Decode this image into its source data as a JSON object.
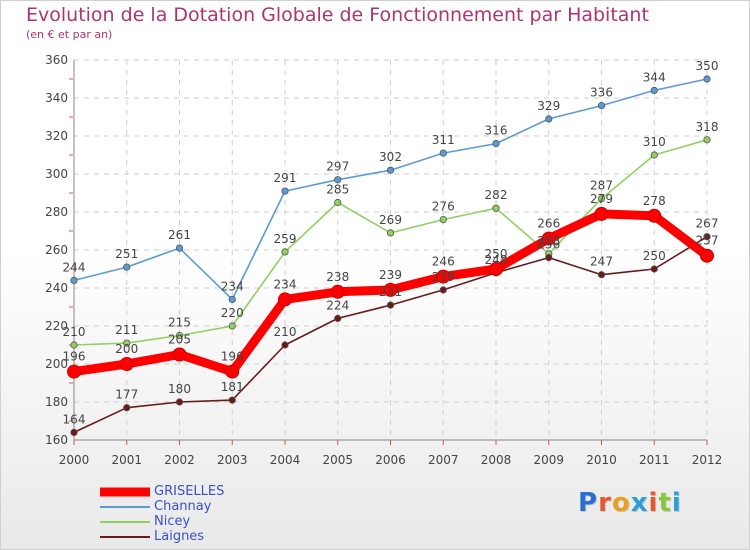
{
  "header": {
    "title": "Evolution de la Dotation Globale de Fonctionnement par Habitant",
    "subtitle": "(en € et par an)"
  },
  "logo": {
    "text": "Proxiti",
    "letter_colors": [
      "#2a6fd0",
      "#e8572a",
      "#e8a020",
      "#2a9fd8",
      "#e8572a",
      "#8cc63f",
      "#2a9fd8"
    ]
  },
  "chart_data": {
    "type": "line",
    "title": "Evolution de la Dotation Globale de Fonctionnement par Habitant",
    "subtitle": "(en € et par an)",
    "xlabel": "",
    "ylabel": "",
    "x": [
      "2000",
      "2001",
      "2002",
      "2003",
      "2004",
      "2005",
      "2006",
      "2007",
      "2008",
      "2009",
      "2010",
      "2011",
      "2012"
    ],
    "ylim": [
      160,
      360
    ],
    "yticks": [
      160,
      180,
      200,
      220,
      240,
      260,
      280,
      300,
      320,
      340,
      360
    ],
    "grid": true,
    "legend_position": "bottom-left",
    "series": [
      {
        "name": "GRISELLES",
        "color": "#ff0000",
        "values": [
          196,
          200,
          205,
          196,
          234,
          238,
          239,
          246,
          250,
          266,
          279,
          278,
          257
        ]
      },
      {
        "name": "Channay",
        "color": "#5b9bd5",
        "values": [
          244,
          251,
          261,
          234,
          291,
          297,
          302,
          311,
          316,
          329,
          336,
          344,
          350
        ]
      },
      {
        "name": "Nicey",
        "color": "#8fd060",
        "values": [
          210,
          211,
          215,
          220,
          259,
          285,
          269,
          276,
          282,
          258,
          287,
          310,
          318
        ]
      },
      {
        "name": "Laignes",
        "color": "#6b1a1a",
        "values": [
          164,
          177,
          180,
          181,
          210,
          224,
          231,
          239,
          248,
          256,
          247,
          250,
          267
        ]
      }
    ]
  }
}
